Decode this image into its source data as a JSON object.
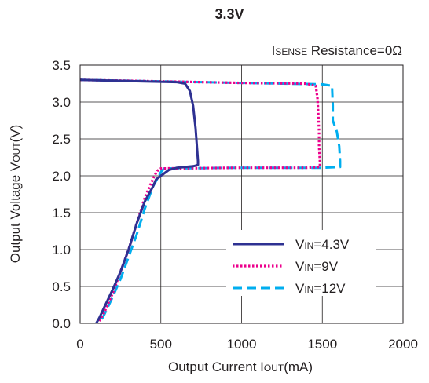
{
  "chart_data": {
    "type": "line",
    "title": "3.3V",
    "annotation": {
      "prefix": "I",
      "sub": "SENSE",
      "suffix": " Resistance=0Ω"
    },
    "xlabel": {
      "prefix": "Output Current I",
      "sub": "OUT",
      "suffix": "(mA)"
    },
    "ylabel": {
      "prefix": "Output Voltage V",
      "sub": "OUT",
      "suffix": "(V)"
    },
    "xlim": [
      0,
      2000
    ],
    "ylim": [
      0,
      3.5
    ],
    "xticks": [
      0,
      500,
      1000,
      1500,
      2000
    ],
    "yticks": [
      0.0,
      0.5,
      1.0,
      1.5,
      2.0,
      2.5,
      3.0,
      3.5
    ],
    "xtick_labels": [
      "0",
      "500",
      "1000",
      "1500",
      "2000"
    ],
    "ytick_labels": [
      "0.0",
      "0.5",
      "1.0",
      "1.5",
      "2.0",
      "2.5",
      "3.0",
      "3.5"
    ],
    "grid": true,
    "legend_position": "lower-right",
    "series": [
      {
        "name": {
          "prefix": "V",
          "sub": "IN",
          "suffix": "=4.3V"
        },
        "color": "#2e3192",
        "dash": "solid",
        "x": [
          0,
          200,
          400,
          600,
          650,
          680,
          700,
          715,
          725,
          730,
          730,
          720,
          700,
          650,
          600,
          550,
          500,
          470,
          450,
          400,
          350,
          300,
          250,
          200,
          150,
          120,
          100
        ],
        "y": [
          3.3,
          3.29,
          3.28,
          3.27,
          3.25,
          3.15,
          2.95,
          2.65,
          2.35,
          2.2,
          2.15,
          2.14,
          2.13,
          2.12,
          2.11,
          2.08,
          2.0,
          1.95,
          1.85,
          1.65,
          1.35,
          1.0,
          0.7,
          0.45,
          0.22,
          0.08,
          0.0
        ]
      },
      {
        "name": {
          "prefix": "V",
          "sub": "IN",
          "suffix": "=9V"
        },
        "color": "#ec008c",
        "dash": "dotted",
        "x": [
          0,
          500,
          1000,
          1400,
          1460,
          1470,
          1475,
          1480,
          1480,
          1485,
          1485,
          1400,
          1000,
          500,
          480,
          460,
          400,
          350,
          300,
          250,
          200,
          150,
          110
        ],
        "y": [
          3.3,
          3.28,
          3.26,
          3.25,
          3.22,
          3.05,
          2.85,
          2.6,
          2.4,
          2.2,
          2.12,
          2.11,
          2.11,
          2.1,
          2.07,
          2.0,
          1.7,
          1.35,
          1.0,
          0.7,
          0.4,
          0.15,
          0.0
        ]
      },
      {
        "name": {
          "prefix": "V",
          "sub": "IN",
          "suffix": "=12V"
        },
        "color": "#00aeef",
        "dash": "dashed",
        "x": [
          0,
          500,
          1000,
          1500,
          1560,
          1565,
          1565,
          1590,
          1605,
          1610,
          1610,
          1500,
          1000,
          520,
          500,
          450,
          400,
          350,
          300,
          250,
          200,
          150,
          120
        ],
        "y": [
          3.3,
          3.28,
          3.26,
          3.24,
          3.22,
          2.95,
          2.75,
          2.6,
          2.4,
          2.2,
          2.12,
          2.11,
          2.11,
          2.1,
          2.05,
          1.85,
          1.55,
          1.2,
          0.9,
          0.6,
          0.35,
          0.12,
          0.0
        ]
      }
    ]
  }
}
